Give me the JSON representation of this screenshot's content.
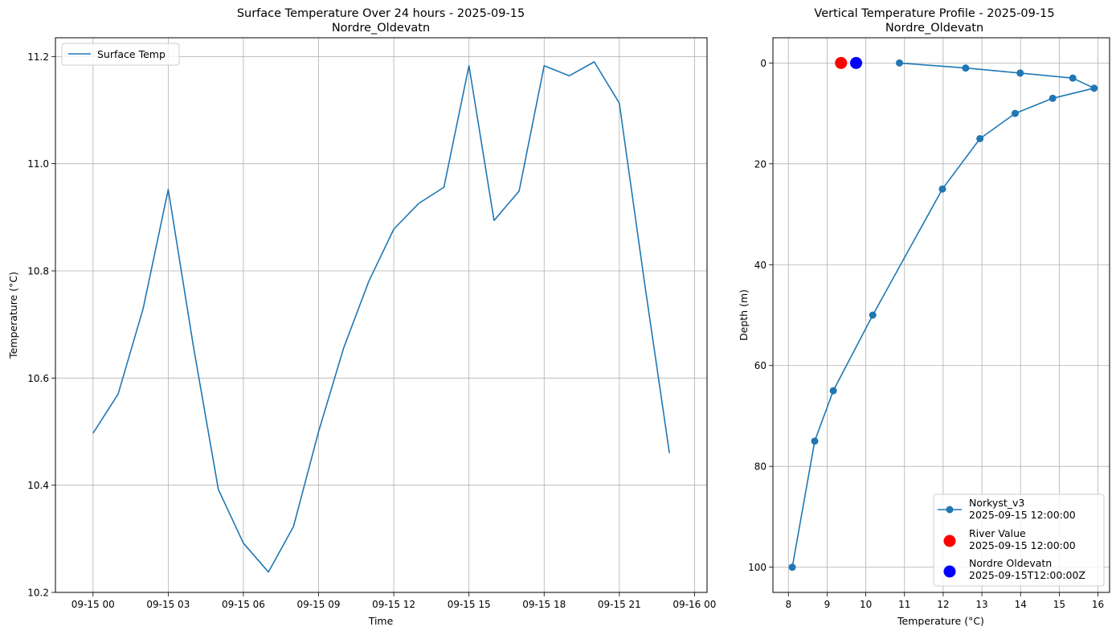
{
  "chart_data": [
    {
      "type": "line",
      "title": "Surface Temperature Over 24 hours - 2025-09-15",
      "subtitle": "Nordre_Oldevatn",
      "xlabel": "Time",
      "ylabel": "Temperature (°C)",
      "xlim": [
        -1.5,
        24.5
      ],
      "ylim": [
        10.2,
        11.235
      ],
      "xticks": [
        0,
        3,
        6,
        9,
        12,
        15,
        18,
        21,
        24
      ],
      "xtick_labels": [
        "09-15 00",
        "09-15 03",
        "09-15 06",
        "09-15 09",
        "09-15 12",
        "09-15 15",
        "09-15 18",
        "09-15 21",
        "09-16 00"
      ],
      "yticks": [
        10.2,
        10.4,
        10.6,
        10.8,
        11.0,
        11.2
      ],
      "ytick_labels": [
        "10.2",
        "10.4",
        "10.6",
        "10.8",
        "11.0",
        "11.2"
      ],
      "grid": true,
      "legend_position": "top-left",
      "series": [
        {
          "name": "Surface Temp",
          "color": "#1f77b4",
          "x": [
            0,
            1,
            2,
            3,
            4,
            5,
            6,
            7,
            8,
            9,
            10,
            11,
            12,
            13,
            14,
            15,
            16,
            17,
            18,
            19,
            20,
            21,
            22,
            23
          ],
          "values": [
            10.497,
            10.57,
            10.73,
            10.952,
            10.66,
            10.392,
            10.292,
            10.238,
            10.323,
            10.5,
            10.656,
            10.78,
            10.878,
            10.926,
            10.956,
            11.183,
            10.894,
            10.949,
            11.183,
            11.164,
            11.19,
            11.113,
            10.78,
            10.46
          ]
        }
      ]
    },
    {
      "type": "line",
      "title": "Vertical Temperature Profile - 2025-09-15",
      "subtitle": "Nordre_Oldevatn",
      "xlabel": "Temperature (°C)",
      "ylabel": "Depth (m)",
      "xlim": [
        7.6,
        16.3
      ],
      "ylim": [
        105,
        -5
      ],
      "y_inverted": true,
      "xticks": [
        8,
        9,
        10,
        11,
        12,
        13,
        14,
        15,
        16
      ],
      "xtick_labels": [
        "8",
        "9",
        "10",
        "11",
        "12",
        "13",
        "14",
        "15",
        "16"
      ],
      "yticks": [
        0,
        20,
        40,
        60,
        80,
        100
      ],
      "ytick_labels": [
        "0",
        "20",
        "40",
        "60",
        "80",
        "100"
      ],
      "grid": true,
      "legend_position": "bottom-right",
      "series": [
        {
          "name": "Norkyst_v3",
          "legend_sub": "2025-09-15 12:00:00",
          "color": "#1f77b4",
          "marker": "circle-line",
          "x": [
            10.87,
            12.58,
            13.99,
            15.35,
            15.9,
            14.83,
            13.86,
            12.95,
            11.98,
            10.18,
            9.16,
            8.68,
            8.1
          ],
          "y": [
            0,
            1,
            2,
            3,
            5,
            7,
            10,
            15,
            25,
            50,
            65,
            75,
            100
          ]
        },
        {
          "name": "River Value",
          "legend_sub": "2025-09-15 12:00:00",
          "color": "#ff0000",
          "marker": "big-circle",
          "x": [
            9.36
          ],
          "y": [
            0
          ]
        },
        {
          "name": "Nordre Oldevatn",
          "legend_sub": "2025-09-15T12:00:00Z",
          "color": "#0000ff",
          "marker": "big-circle",
          "x": [
            9.75
          ],
          "y": [
            0
          ]
        }
      ]
    }
  ]
}
